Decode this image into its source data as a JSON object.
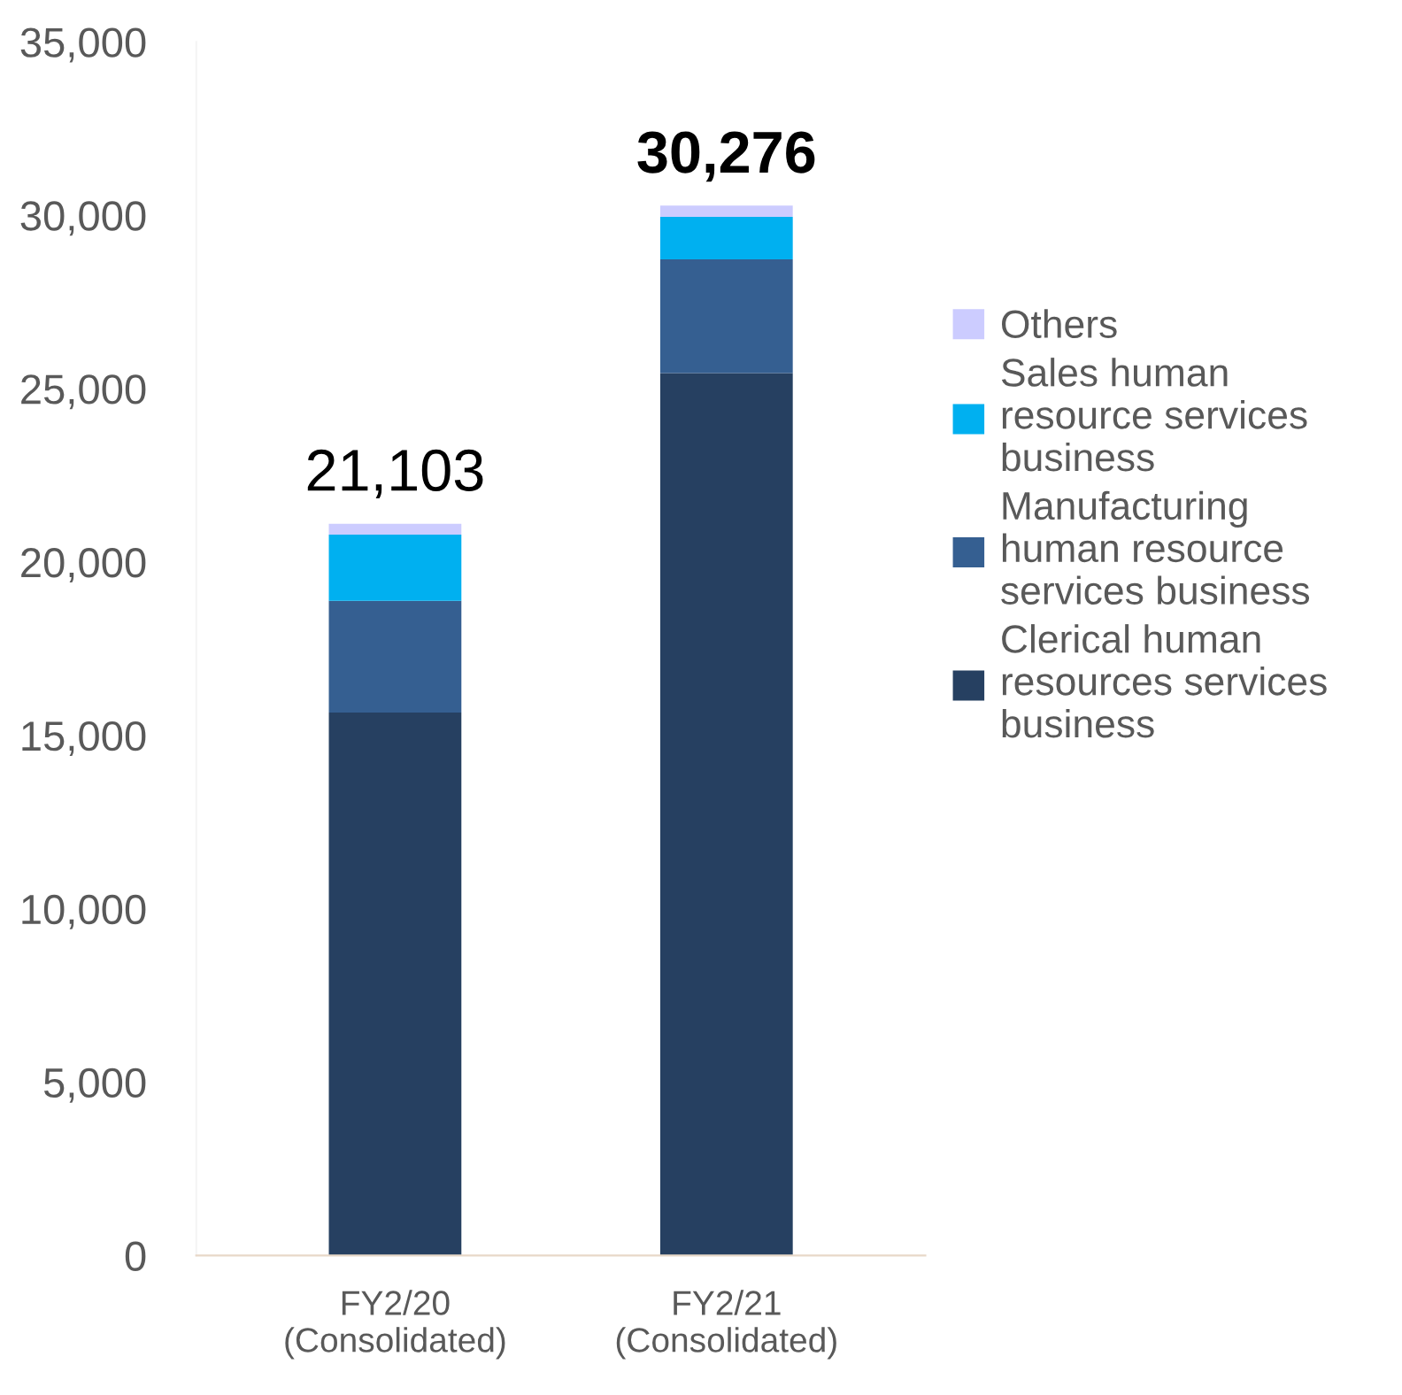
{
  "chart_data": {
    "type": "bar",
    "stacked": true,
    "categories": [
      "FY2/20\n(Consolidated)",
      "FY2/21\n(Consolidated)"
    ],
    "series": [
      {
        "name": "Clerical human\nresources services\nbusiness",
        "color": "#264061",
        "values": [
          15660,
          25450
        ]
      },
      {
        "name": "Manufacturing\nhuman resource\nservices business",
        "color": "#355f91",
        "values": [
          3220,
          3280
        ]
      },
      {
        "name": "Sales human\nresource services\nbusiness",
        "color": "#00b0f0",
        "values": [
          1910,
          1220
        ]
      },
      {
        "name": "Others",
        "color": "#ccccff",
        "values": [
          313,
          326
        ]
      }
    ],
    "totals": [
      "21,103",
      "30,276"
    ],
    "ylim": [
      0,
      35000
    ],
    "yticks": [
      {
        "value": 0,
        "label": "0"
      },
      {
        "value": 5000,
        "label": "5,000"
      },
      {
        "value": 10000,
        "label": "10,000"
      },
      {
        "value": 15000,
        "label": "15,000"
      },
      {
        "value": 20000,
        "label": "20,000"
      },
      {
        "value": 25000,
        "label": "25,000"
      },
      {
        "value": 30000,
        "label": "30,000"
      },
      {
        "value": 35000,
        "label": "35,000"
      }
    ],
    "grid": false,
    "legend": "right"
  }
}
